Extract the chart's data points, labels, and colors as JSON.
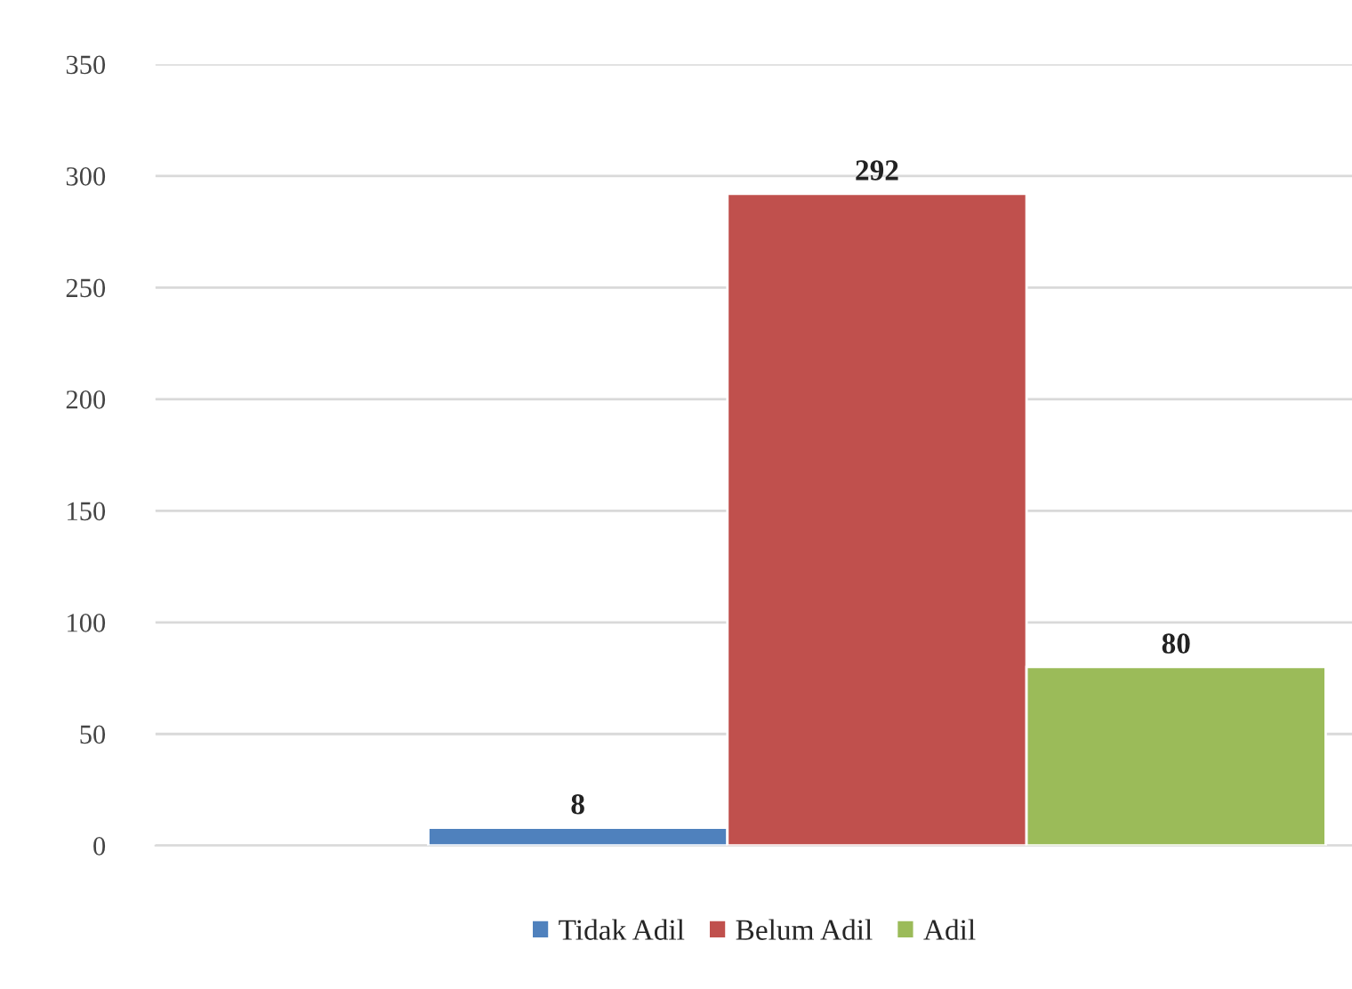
{
  "chart_data": {
    "type": "bar",
    "categories": [
      null
    ],
    "series": [
      {
        "name": "Tidak Adil",
        "color": "#4f81bd",
        "values": [
          8
        ]
      },
      {
        "name": "Belum Adil",
        "color": "#c0504d",
        "values": [
          292
        ]
      },
      {
        "name": "Adil",
        "color": "#9bbb59",
        "values": [
          80
        ]
      }
    ],
    "ylim": [
      0,
      350
    ],
    "yticks": [
      0,
      50,
      100,
      150,
      200,
      250,
      300,
      350
    ],
    "grid": "y",
    "legend": "bottom",
    "data_labels": true
  }
}
